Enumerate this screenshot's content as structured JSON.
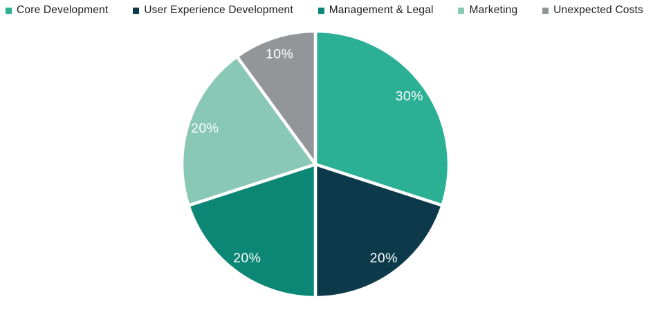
{
  "page": {
    "background_color": "#ffffff",
    "legend_text_color": "#1c1c1c"
  },
  "chart_data": {
    "type": "pie",
    "title": "",
    "legend_position": "top",
    "start_angle_deg": 0,
    "direction": "clockwise",
    "slice_label_color": "#ffffff",
    "separator_color": "#ffffff",
    "categories": [
      "Core Development",
      "User Experience Development",
      "Management & Legal",
      "Marketing",
      "Unexpected Costs"
    ],
    "values": [
      30,
      20,
      20,
      20,
      10
    ],
    "segments": [
      {
        "id": "core-development",
        "label": "Core Development",
        "value": 30,
        "percent_label": "30%",
        "color": "#2bb095"
      },
      {
        "id": "user-experience-development",
        "label": "User Experience Development",
        "value": 20,
        "percent_label": "20%",
        "color": "#0c3a4a"
      },
      {
        "id": "management-legal",
        "label": "Management & Legal",
        "value": 20,
        "percent_label": "20%",
        "color": "#0c8775"
      },
      {
        "id": "marketing",
        "label": "Marketing",
        "value": 20,
        "percent_label": "20%",
        "color": "#88c8b4"
      },
      {
        "id": "unexpected-costs",
        "label": "Unexpected Costs",
        "value": 10,
        "percent_label": "10%",
        "color": "#929699"
      }
    ]
  }
}
